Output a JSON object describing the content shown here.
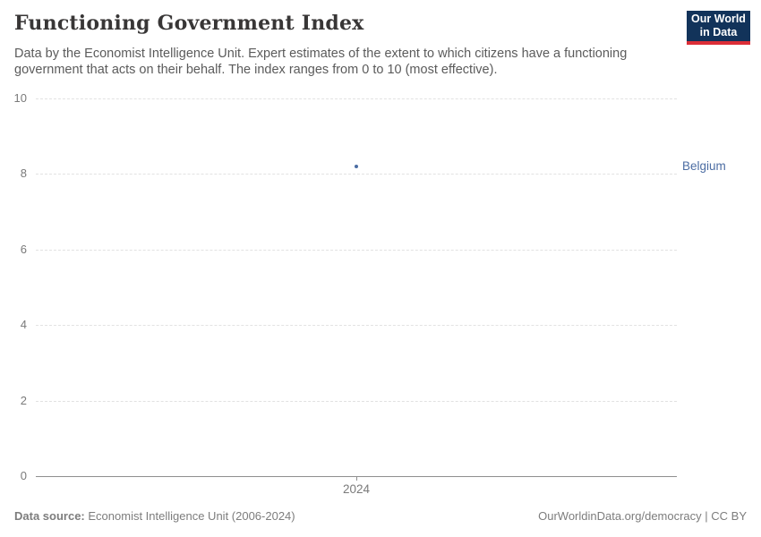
{
  "header": {
    "title": "Functioning Government Index",
    "subtitle": "Data by the Economist Intelligence Unit. Expert estimates of the extent to which citizens have a functioning government that acts on their behalf. The index ranges from 0 to 10 (most effective).",
    "logo": {
      "line1": "Our World",
      "line2": "in Data"
    }
  },
  "footer": {
    "source_label": "Data source:",
    "source_value": "Economist Intelligence Unit (2006-2024)",
    "credit": "OurWorldinData.org/democracy | CC BY"
  },
  "colors": {
    "accent_color": "#4c6da3",
    "grid_color": "#e2e2e2",
    "axis_color": "#8f8f8f",
    "tick_text": "#7a7a7a",
    "title_color": "#383636",
    "subtitle_color": "#5b5b5b",
    "footer_color": "#7d7d7d",
    "logo_bg": "#12335a",
    "logo_red": "#dc2e37"
  },
  "chart_data": {
    "type": "scatter",
    "title": "Functioning Government Index",
    "x": [
      2024
    ],
    "series": [
      {
        "name": "Belgium",
        "values": [
          8.2
        ]
      }
    ],
    "ylim": [
      0,
      10
    ],
    "yticks": [
      0,
      2,
      4,
      6,
      8,
      10
    ],
    "xticks": [
      "2024"
    ],
    "xlabel": "",
    "ylabel": "",
    "grid": "horizontal-dashed",
    "legend": "entity-label-right-of-point"
  }
}
